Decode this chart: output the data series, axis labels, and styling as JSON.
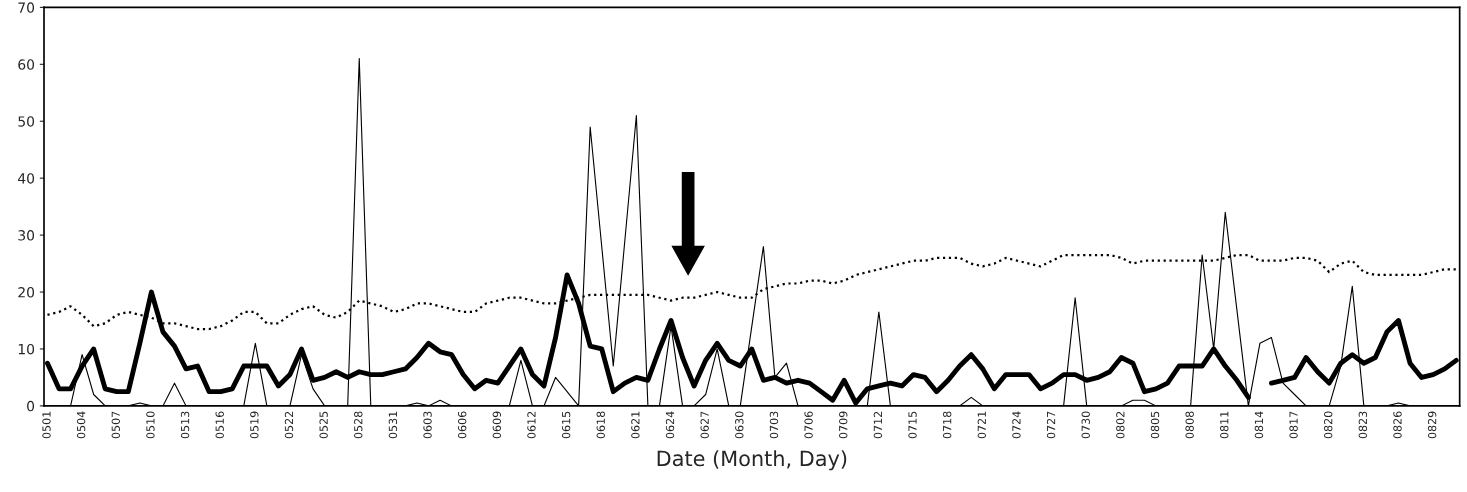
{
  "chart_data": {
    "type": "line",
    "xlabel": "Date (Month, Day)",
    "ylim": [
      0,
      70
    ],
    "yticks": [
      0,
      10,
      20,
      30,
      40,
      50,
      60,
      70
    ],
    "grid": false,
    "categories": [
      "0501",
      null,
      null,
      "0504",
      null,
      null,
      "0507",
      null,
      null,
      "0510",
      null,
      null,
      "0513",
      null,
      null,
      "0516",
      null,
      null,
      "0519",
      null,
      null,
      "0522",
      null,
      null,
      "0525",
      null,
      null,
      "0528",
      null,
      null,
      "0531",
      null,
      null,
      "0603",
      null,
      null,
      "0606",
      null,
      null,
      "0609",
      null,
      null,
      "0612",
      null,
      null,
      "0615",
      null,
      null,
      "0618",
      null,
      null,
      "0621",
      null,
      null,
      "0624",
      null,
      null,
      "0627",
      null,
      null,
      "0630",
      null,
      null,
      "0703",
      null,
      null,
      "0706",
      null,
      null,
      "0709",
      null,
      null,
      "0712",
      null,
      null,
      "0715",
      null,
      null,
      "0718",
      null,
      null,
      "0721",
      null,
      null,
      "0724",
      null,
      null,
      "0727",
      null,
      null,
      "0730",
      null,
      null,
      "0802",
      null,
      null,
      "0805",
      null,
      null,
      "0808",
      null,
      null,
      "0811",
      null,
      null,
      "0814",
      null,
      null,
      "0817",
      null,
      null,
      "0820",
      null,
      null,
      "0823",
      null,
      null,
      "0826",
      null,
      null,
      "0829",
      null,
      null
    ],
    "series": [
      {
        "color": "#000000",
        "line_style": "dotted",
        "values": [
          16,
          16.5,
          17.5,
          16,
          14,
          14.5,
          16,
          16.5,
          16,
          15.5,
          14.5,
          14.5,
          14,
          13.5,
          13.5,
          14,
          15,
          16.5,
          16.5,
          14.5,
          14.5,
          16,
          17,
          17.5,
          16,
          15.5,
          16.5,
          18.5,
          18,
          17.5,
          16.5,
          17,
          18,
          18,
          17.5,
          17,
          16.5,
          16.5,
          18,
          18.5,
          19,
          19,
          18.5,
          18,
          18,
          18.5,
          19,
          19.5,
          19.5,
          19.5,
          19.5,
          19.5,
          19.5,
          19,
          18.5,
          19,
          19,
          19.5,
          20,
          19.5,
          19,
          19,
          20.5,
          21,
          21.5,
          21.5,
          22,
          22,
          21.5,
          22,
          23,
          23.5,
          24,
          24.5,
          25,
          25.5,
          25.5,
          26,
          26,
          26,
          25,
          24.5,
          25,
          26,
          25.5,
          25,
          24.5,
          25.5,
          26.5,
          26.5,
          26.5,
          26.5,
          26.5,
          26,
          25,
          25.5,
          25.5,
          25.5,
          25.5,
          25.5,
          25.5,
          25.5,
          26,
          26.5,
          26.5,
          25.5,
          25.5,
          25.5,
          26,
          26,
          25.5,
          23.5,
          25,
          25.5,
          23.5,
          23,
          23,
          23,
          23,
          23,
          23.5,
          24,
          24
        ]
      },
      {
        "color": "#000000",
        "line_style": "solid",
        "values": [
          0,
          0,
          0,
          9,
          2,
          0,
          0,
          0,
          0.5,
          0,
          0,
          4,
          0,
          0,
          0,
          0,
          0,
          0,
          11,
          0,
          0,
          0,
          9,
          3,
          0,
          0,
          0,
          61,
          0,
          0,
          0,
          0,
          0.5,
          0,
          1,
          0,
          0,
          0,
          0,
          0,
          0,
          8,
          0,
          0,
          5,
          2.5,
          0,
          49,
          28,
          7,
          29,
          51,
          0,
          0,
          14,
          0,
          0,
          2,
          10,
          0,
          0,
          14,
          28,
          5,
          7.5,
          0,
          0,
          0,
          0,
          0,
          0,
          0,
          16.5,
          0,
          0,
          0,
          0,
          0,
          0,
          0,
          1.5,
          0,
          0,
          0,
          0,
          0,
          0,
          0,
          0,
          19,
          0,
          0,
          0,
          0,
          1,
          1,
          0,
          0,
          0,
          0,
          26.5,
          10,
          34,
          17,
          0,
          11,
          12,
          4,
          2,
          0,
          0,
          0,
          7,
          21,
          0,
          0,
          0,
          0.5,
          0,
          0,
          0,
          0,
          0
        ]
      },
      {
        "color": "#000000",
        "line_style": "solid",
        "values": [
          7.5,
          3,
          3,
          7,
          10,
          3,
          2.5,
          2.5,
          11,
          20,
          13,
          10.5,
          6.5,
          7,
          2.5,
          2.5,
          3,
          7,
          7,
          7,
          3.5,
          5.5,
          10,
          4.5,
          5,
          6,
          5,
          6,
          5.5,
          5.5,
          6,
          6.5,
          8.5,
          11,
          9.5,
          9,
          5.5,
          3,
          4.5,
          4,
          7,
          10,
          5.5,
          3.5,
          12,
          23,
          18,
          10.5,
          10,
          2.5,
          4,
          5,
          4.5,
          10,
          15,
          8.5,
          3.5,
          8,
          11,
          8,
          7,
          10,
          4.5,
          5,
          4,
          4.5,
          4,
          2.5,
          1,
          4.5,
          0.5,
          3,
          3.5,
          4,
          3.5,
          5.5,
          5,
          2.5,
          4.5,
          7,
          9,
          6.5,
          3,
          5.5,
          5.5,
          5.5,
          3,
          4,
          5.5,
          5.5,
          4.5,
          5,
          6,
          8.5,
          7.5,
          2.5,
          3,
          4,
          7,
          7,
          7,
          10,
          7,
          4.5,
          1.5,
          null,
          4,
          4.5,
          5,
          8.5,
          6,
          4,
          7.5,
          9,
          7.5,
          8.5,
          13,
          15,
          7.5,
          5,
          5.5,
          6.5,
          8
        ]
      }
    ]
  }
}
